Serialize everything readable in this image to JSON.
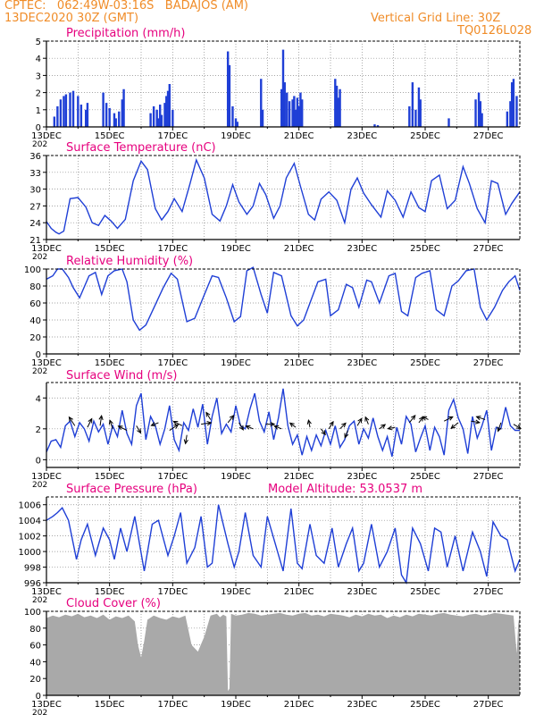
{
  "header": {
    "line1": "CPTEC:   062:49W-03:16S   BADAJOS (AM)",
    "line2": "13DEC2020 30Z (GMT)",
    "grid_note": "Vertical Grid Line: 30Z",
    "run_code": "TQ0126L028"
  },
  "colors": {
    "header": "#f08c28",
    "panel_title": "#e6007e",
    "series": "#1f3fd6",
    "cloud": "#a9a9a9",
    "wind_arrow": "#000000"
  },
  "chart_data": [
    {
      "id": "precip",
      "type": "bar",
      "title": "Precipitation (mm/h)",
      "ylim": [
        0,
        5
      ],
      "yticks": [
        0,
        1,
        2,
        3,
        4,
        5
      ],
      "xlim": [
        0,
        15
      ],
      "x_tick_labels": [
        "13DEC",
        "15DEC",
        "17DEC",
        "19DEC",
        "21DEC",
        "23DEC",
        "25DEC",
        "27DEC"
      ],
      "x_tick_values": [
        0,
        2,
        4,
        6,
        8,
        10,
        12,
        14
      ],
      "edge_label": "202",
      "x": [
        0.25,
        0.35,
        0.45,
        0.55,
        0.62,
        0.75,
        0.85,
        1.0,
        1.1,
        1.25,
        1.3,
        1.8,
        1.9,
        2.0,
        2.15,
        2.2,
        2.3,
        2.4,
        2.45,
        3.3,
        3.4,
        3.5,
        3.55,
        3.6,
        3.65,
        3.75,
        3.8,
        3.85,
        3.9,
        4.0,
        5.75,
        5.8,
        5.9,
        6.0,
        6.05,
        6.8,
        6.85,
        7.45,
        7.5,
        7.55,
        7.62,
        7.7,
        7.8,
        7.85,
        7.9,
        7.95,
        8.0,
        8.05,
        8.1,
        9.15,
        9.2,
        9.25,
        9.3,
        10.4,
        10.5,
        11.5,
        11.6,
        11.7,
        11.8,
        11.85,
        12.75,
        13.6,
        13.7,
        13.75,
        13.8,
        14.6,
        14.7,
        14.75,
        14.8,
        14.9
      ],
      "values": [
        0.6,
        1.2,
        1.6,
        1.8,
        1.9,
        2.0,
        2.1,
        1.8,
        1.3,
        1.0,
        1.4,
        2.0,
        1.4,
        1.1,
        0.8,
        0.5,
        0.9,
        1.6,
        2.2,
        0.8,
        1.2,
        1.0,
        0.5,
        1.3,
        0.7,
        1.4,
        1.8,
        2.1,
        2.5,
        1.0,
        4.4,
        3.6,
        1.2,
        0.5,
        0.3,
        2.8,
        1.0,
        2.2,
        4.5,
        2.6,
        2.0,
        1.5,
        1.6,
        1.8,
        1.0,
        1.7,
        1.2,
        2.0,
        1.6,
        2.8,
        2.4,
        1.7,
        2.2,
        0.15,
        0.1,
        1.2,
        2.6,
        1.0,
        2.3,
        1.6,
        0.5,
        1.6,
        2.0,
        1.5,
        0.8,
        0.9,
        1.5,
        2.6,
        2.8,
        1.8
      ]
    },
    {
      "id": "temp",
      "type": "line",
      "title": "Surface Temperature (nC)",
      "ylim": [
        21,
        36
      ],
      "yticks": [
        21,
        24,
        27,
        30,
        33,
        36
      ],
      "xlim": [
        0,
        15
      ],
      "x_tick_labels": [
        "13DEC",
        "15DEC",
        "17DEC",
        "19DEC",
        "21DEC",
        "23DEC",
        "25DEC",
        "27DEC"
      ],
      "x_tick_values": [
        0,
        2,
        4,
        6,
        8,
        10,
        12,
        14
      ],
      "edge_label": "202",
      "x": [
        0,
        0.15,
        0.3,
        0.4,
        0.55,
        0.75,
        1.0,
        1.25,
        1.45,
        1.65,
        1.85,
        2.05,
        2.25,
        2.5,
        2.75,
        3.0,
        3.2,
        3.45,
        3.65,
        3.85,
        4.05,
        4.3,
        4.55,
        4.75,
        5.0,
        5.25,
        5.5,
        5.7,
        5.9,
        6.1,
        6.35,
        6.55,
        6.75,
        6.95,
        7.2,
        7.4,
        7.6,
        7.85,
        8.05,
        8.3,
        8.5,
        8.7,
        8.95,
        9.2,
        9.45,
        9.65,
        9.85,
        10.05,
        10.3,
        10.6,
        10.8,
        11.05,
        11.3,
        11.55,
        11.8,
        12.0,
        12.2,
        12.45,
        12.7,
        12.95,
        13.2,
        13.4,
        13.65,
        13.9,
        14.1,
        14.3,
        14.55,
        14.75,
        15.0
      ],
      "values": [
        24.2,
        23.0,
        22.3,
        22.0,
        22.5,
        28.3,
        28.5,
        26.8,
        24.0,
        23.5,
        25.3,
        24.3,
        23.0,
        24.6,
        31.5,
        35.0,
        33.5,
        26.5,
        24.5,
        26.0,
        28.3,
        26.0,
        31.0,
        35.2,
        32.0,
        25.5,
        24.3,
        27.0,
        30.8,
        27.7,
        25.5,
        27.0,
        31.0,
        29.0,
        24.8,
        27.0,
        32.0,
        34.6,
        30.5,
        25.5,
        24.5,
        28.2,
        29.5,
        28.0,
        24.0,
        30.0,
        32.0,
        29.3,
        27.2,
        25.0,
        29.7,
        28.0,
        25.0,
        29.5,
        26.7,
        26.0,
        31.5,
        32.5,
        26.5,
        28.0,
        34.0,
        31.0,
        26.5,
        24.0,
        31.5,
        31.0,
        25.5,
        27.5,
        29.5
      ]
    },
    {
      "id": "rh",
      "type": "line",
      "title": "Relative Humidity (%)",
      "ylim": [
        0,
        100
      ],
      "yticks": [
        0,
        20,
        40,
        60,
        80,
        100
      ],
      "xlim": [
        0,
        15
      ],
      "x_tick_labels": [
        "13DEC",
        "15DEC",
        "17DEC",
        "19DEC",
        "21DEC",
        "23DEC",
        "25DEC",
        "27DEC"
      ],
      "x_tick_values": [
        0,
        2,
        4,
        6,
        8,
        10,
        12,
        14
      ],
      "edge_label": "202",
      "x": [
        0,
        0.2,
        0.35,
        0.5,
        0.7,
        0.85,
        1.05,
        1.35,
        1.55,
        1.75,
        1.95,
        2.15,
        2.4,
        2.55,
        2.75,
        2.95,
        3.15,
        3.45,
        3.7,
        3.95,
        4.15,
        4.45,
        4.7,
        4.95,
        5.25,
        5.45,
        5.7,
        5.95,
        6.15,
        6.35,
        6.55,
        6.8,
        7.0,
        7.2,
        7.45,
        7.75,
        7.95,
        8.15,
        8.4,
        8.6,
        8.85,
        9.0,
        9.25,
        9.5,
        9.7,
        9.9,
        10.15,
        10.3,
        10.55,
        10.85,
        11.05,
        11.25,
        11.45,
        11.7,
        11.9,
        12.15,
        12.35,
        12.6,
        12.85,
        13.05,
        13.3,
        13.55,
        13.75,
        13.95,
        14.2,
        14.45,
        14.65,
        14.85,
        15.0
      ],
      "values": [
        88,
        92,
        100,
        100,
        90,
        78,
        66,
        92,
        96,
        70,
        92,
        98,
        100,
        85,
        40,
        28,
        34,
        58,
        78,
        95,
        88,
        38,
        42,
        65,
        92,
        90,
        66,
        38,
        44,
        98,
        102,
        70,
        48,
        96,
        92,
        45,
        33,
        40,
        65,
        85,
        88,
        45,
        52,
        82,
        78,
        55,
        87,
        85,
        60,
        92,
        95,
        50,
        45,
        90,
        95,
        98,
        52,
        45,
        80,
        86,
        98,
        100,
        55,
        40,
        55,
        75,
        85,
        92,
        75
      ]
    },
    {
      "id": "wind",
      "type": "line",
      "title": "Surface Wind (m/s)",
      "ylim": [
        -0.5,
        5
      ],
      "yticks": [
        0,
        2,
        4
      ],
      "xlim": [
        0,
        15
      ],
      "x_tick_labels": [
        "13DEC",
        "15DEC",
        "17DEC",
        "19DEC",
        "21DEC",
        "23DEC",
        "25DEC",
        "27DEC"
      ],
      "x_tick_values": [
        0,
        2,
        4,
        6,
        8,
        10,
        12,
        14
      ],
      "edge_label": "202",
      "x": [
        0,
        0.15,
        0.3,
        0.45,
        0.6,
        0.75,
        0.9,
        1.05,
        1.2,
        1.35,
        1.5,
        1.65,
        1.8,
        1.95,
        2.1,
        2.25,
        2.4,
        2.55,
        2.7,
        2.85,
        3.0,
        3.15,
        3.3,
        3.45,
        3.6,
        3.75,
        3.9,
        4.05,
        4.2,
        4.35,
        4.5,
        4.65,
        4.8,
        4.95,
        5.1,
        5.25,
        5.4,
        5.55,
        5.7,
        5.85,
        6.0,
        6.15,
        6.3,
        6.45,
        6.6,
        6.75,
        6.9,
        7.05,
        7.2,
        7.35,
        7.5,
        7.65,
        7.8,
        7.95,
        8.1,
        8.25,
        8.4,
        8.55,
        8.7,
        8.85,
        9.0,
        9.15,
        9.3,
        9.45,
        9.6,
        9.75,
        9.9,
        10.05,
        10.2,
        10.35,
        10.5,
        10.65,
        10.8,
        10.95,
        11.1,
        11.25,
        11.4,
        11.55,
        11.7,
        11.85,
        12.0,
        12.15,
        12.3,
        12.45,
        12.6,
        12.75,
        12.9,
        13.05,
        13.2,
        13.35,
        13.5,
        13.65,
        13.8,
        13.95,
        14.1,
        14.25,
        14.4,
        14.55,
        14.7,
        14.85,
        15.0
      ],
      "values": [
        0.5,
        1.2,
        1.3,
        0.8,
        2.2,
        2.5,
        1.5,
        2.4,
        2.0,
        1.2,
        2.5,
        1.8,
        2.3,
        1.0,
        2.2,
        1.5,
        3.2,
        1.7,
        1.0,
        3.5,
        4.3,
        1.3,
        2.8,
        2.2,
        1.0,
        2.0,
        3.5,
        1.3,
        0.6,
        2.4,
        1.9,
        3.3,
        2.1,
        3.6,
        1.0,
        2.8,
        4.0,
        1.7,
        2.3,
        1.8,
        3.5,
        2.2,
        2.0,
        3.3,
        4.3,
        2.5,
        1.8,
        3.1,
        1.3,
        2.7,
        4.6,
        2.2,
        1.0,
        1.6,
        0.3,
        1.5,
        0.6,
        1.6,
        0.9,
        1.9,
        1.0,
        2.2,
        0.8,
        1.3,
        2.2,
        2.5,
        1.0,
        2.0,
        1.4,
        2.7,
        1.5,
        0.6,
        1.5,
        0.2,
        2.1,
        1.0,
        2.8,
        2.3,
        0.5,
        1.4,
        2.2,
        0.6,
        2.1,
        1.5,
        0.3,
        3.2,
        3.9,
        2.7,
        2.0,
        0.4,
        2.8,
        1.4,
        2.2,
        3.2,
        0.6,
        2.1,
        2.0,
        3.4,
        2.2,
        1.9,
        1.9
      ],
      "arrows": [
        [
          0.9,
          2.2,
          -0.4,
          0.6
        ],
        [
          1.3,
          2.1,
          0.3,
          0.6
        ],
        [
          1.7,
          2.2,
          0.1,
          0.7
        ],
        [
          2.1,
          2.0,
          -0.2,
          0.6
        ],
        [
          2.55,
          1.9,
          -0.6,
          0.3
        ],
        [
          2.85,
          2.2,
          0.3,
          -0.5
        ],
        [
          3.55,
          2.4,
          -0.5,
          -0.2
        ],
        [
          3.9,
          1.9,
          0.6,
          0.4
        ],
        [
          4.3,
          2.2,
          -0.6,
          0.3
        ],
        [
          4.45,
          1.6,
          -0.1,
          -0.6
        ],
        [
          4.9,
          2.3,
          0.7,
          0.1
        ],
        [
          5.2,
          2.6,
          -0.3,
          0.5
        ],
        [
          5.75,
          2.4,
          0.4,
          0.5
        ],
        [
          6.1,
          2.4,
          0.3,
          -0.5
        ],
        [
          6.55,
          2.0,
          -0.5,
          0.2
        ],
        [
          6.95,
          2.3,
          0.6,
          0.0
        ],
        [
          7.45,
          2.0,
          -0.5,
          0.2
        ],
        [
          7.9,
          2.1,
          -0.4,
          0.3
        ],
        [
          8.35,
          2.1,
          -0.1,
          0.5
        ],
        [
          8.7,
          2.0,
          0.3,
          -0.4
        ],
        [
          8.95,
          2.0,
          0.3,
          0.5
        ],
        [
          9.3,
          2.0,
          0.4,
          0.4
        ],
        [
          9.55,
          1.9,
          -0.2,
          -0.5
        ],
        [
          9.85,
          2.2,
          0.3,
          0.5
        ],
        [
          10.2,
          2.3,
          -0.2,
          0.5
        ],
        [
          10.55,
          2.0,
          0.4,
          0.3
        ],
        [
          11.05,
          2.1,
          -0.5,
          -0.1
        ],
        [
          11.5,
          2.4,
          0.4,
          0.5
        ],
        [
          11.8,
          2.4,
          0.3,
          0.4
        ],
        [
          12.1,
          2.6,
          -0.4,
          0.2
        ],
        [
          12.6,
          2.5,
          0.6,
          0.3
        ],
        [
          13.05,
          2.4,
          -0.5,
          -0.4
        ],
        [
          13.45,
          2.5,
          0.6,
          -0.1
        ],
        [
          13.9,
          2.6,
          -0.6,
          0.2
        ],
        [
          14.4,
          2.4,
          -0.2,
          -0.6
        ],
        [
          14.8,
          2.3,
          0.5,
          -0.3
        ]
      ]
    },
    {
      "id": "pressure",
      "type": "line",
      "title": "Surface Pressure (hPa)",
      "ylim": [
        996,
        1007
      ],
      "yticks": [
        996,
        998,
        1000,
        1002,
        1004,
        1006
      ],
      "xlim": [
        0,
        15
      ],
      "x_tick_labels": [
        "13DEC",
        "15DEC",
        "17DEC",
        "19DEC",
        "21DEC",
        "23DEC",
        "25DEC",
        "27DEC"
      ],
      "x_tick_values": [
        0,
        2,
        4,
        6,
        8,
        10,
        12,
        14
      ],
      "edge_label": "202",
      "x": [
        0,
        0.2,
        0.35,
        0.5,
        0.7,
        0.95,
        1.1,
        1.3,
        1.55,
        1.8,
        2.0,
        2.15,
        2.35,
        2.55,
        2.8,
        2.95,
        3.1,
        3.35,
        3.55,
        3.85,
        4.05,
        4.25,
        4.45,
        4.7,
        4.9,
        5.1,
        5.25,
        5.45,
        5.75,
        5.95,
        6.1,
        6.3,
        6.55,
        6.8,
        7.0,
        7.25,
        7.5,
        7.75,
        7.95,
        8.1,
        8.35,
        8.55,
        8.8,
        9.05,
        9.25,
        9.5,
        9.7,
        9.9,
        10.05,
        10.3,
        10.55,
        10.8,
        11.05,
        11.25,
        11.4,
        11.6,
        11.85,
        12.1,
        12.3,
        12.5,
        12.7,
        12.95,
        13.2,
        13.5,
        13.75,
        13.95,
        14.15,
        14.4,
        14.6,
        14.85,
        15.0
      ],
      "values": [
        1004.0,
        1004.5,
        1005.0,
        1005.6,
        1004.0,
        999.0,
        1001.5,
        1003.5,
        999.5,
        1003.0,
        1001.5,
        999.0,
        1003.0,
        1000.0,
        1004.5,
        1001.0,
        997.5,
        1003.5,
        1004.0,
        999.5,
        1002.0,
        1005.0,
        998.5,
        1000.5,
        1004.5,
        998.0,
        998.5,
        1006.0,
        1001.0,
        998.0,
        1000.0,
        1005.0,
        999.5,
        998.0,
        1004.5,
        1001.0,
        997.5,
        1005.5,
        998.5,
        997.8,
        1003.5,
        999.5,
        998.5,
        1003.0,
        998.0,
        1001.0,
        1003.0,
        997.5,
        998.5,
        1003.5,
        998.0,
        1000.0,
        1003.0,
        997.0,
        996.0,
        1003.0,
        1001.0,
        997.5,
        1003.0,
        1002.5,
        998.0,
        1002.0,
        997.5,
        1002.5,
        1000.0,
        996.8,
        1003.8,
        1002.0,
        1001.5,
        997.5,
        999.0
      ],
      "extra_label": "Model Altitude: 53.0537 m"
    },
    {
      "id": "cloud",
      "type": "area",
      "title": "Cloud Cover (%)",
      "ylim": [
        0,
        100
      ],
      "yticks": [
        0,
        20,
        40,
        60,
        80,
        100
      ],
      "xlim": [
        0,
        15
      ],
      "x_tick_labels": [
        "13DEC",
        "15DEC",
        "17DEC",
        "19DEC",
        "21DEC",
        "23DEC",
        "25DEC",
        "27DEC"
      ],
      "x_tick_values": [
        0,
        2,
        4,
        6,
        8,
        10,
        12,
        14
      ],
      "edge_label": "202",
      "x": [
        0,
        0.2,
        0.4,
        0.6,
        0.8,
        1.0,
        1.2,
        1.4,
        1.6,
        1.8,
        2.0,
        2.2,
        2.4,
        2.6,
        2.8,
        2.9,
        3.0,
        3.1,
        3.2,
        3.4,
        3.6,
        3.8,
        4.0,
        4.2,
        4.4,
        4.6,
        4.8,
        5.0,
        5.2,
        5.4,
        5.5,
        5.6,
        5.7,
        5.75,
        5.8,
        5.85,
        6.0,
        6.2,
        6.4,
        6.6,
        6.8,
        7.0,
        7.2,
        7.4,
        7.6,
        7.8,
        8.0,
        8.2,
        8.4,
        8.6,
        8.8,
        9.0,
        9.2,
        9.4,
        9.6,
        9.8,
        10.0,
        10.2,
        10.4,
        10.6,
        10.8,
        11.0,
        11.2,
        11.4,
        11.6,
        11.8,
        12.0,
        12.2,
        12.4,
        12.6,
        12.8,
        13.0,
        13.2,
        13.4,
        13.6,
        13.8,
        14.0,
        14.2,
        14.4,
        14.6,
        14.8,
        14.9,
        14.95,
        15.0
      ],
      "values": [
        92,
        95,
        93,
        96,
        94,
        97,
        93,
        95,
        92,
        96,
        90,
        94,
        92,
        95,
        88,
        60,
        45,
        65,
        90,
        95,
        92,
        90,
        94,
        92,
        95,
        60,
        52,
        70,
        95,
        97,
        93,
        96,
        94,
        5,
        8,
        97,
        95,
        96,
        98,
        97,
        95,
        96,
        97,
        98,
        96,
        95,
        97,
        98,
        95,
        96,
        94,
        97,
        96,
        95,
        93,
        96,
        94,
        97,
        95,
        96,
        92,
        95,
        93,
        96,
        94,
        97,
        96,
        95,
        97,
        98,
        96,
        95,
        94,
        96,
        97,
        95,
        96,
        98,
        97,
        96,
        95,
        50,
        85,
        97
      ]
    }
  ]
}
